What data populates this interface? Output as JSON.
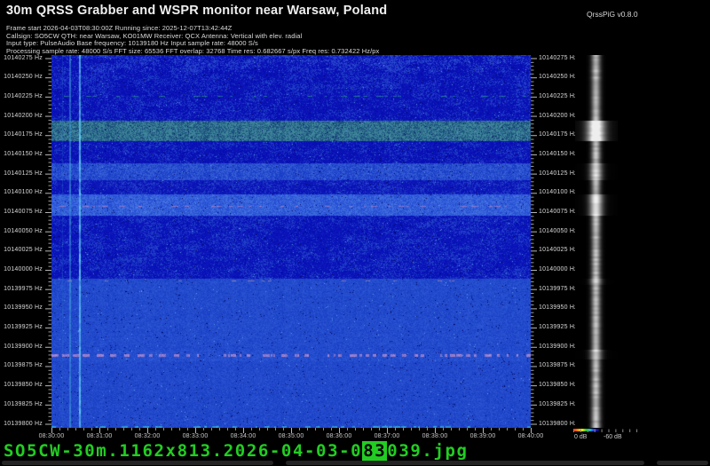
{
  "header": {
    "title": "30m QRSS Grabber and WSPR monitor near Warsaw, Poland",
    "version": "QrssPiG v0.8.0",
    "meta_lines": [
      "Frame start 2026-04-03T08:30:00Z Running since: 2025-12-07T13:42:44Z",
      "Callsign: SO5CW QTH: near Warsaw, KO01MW Receiver: QCX Antenna: Vertical with elev. radial",
      "Input type: PulseAudio Base frequency: 10139180 Hz Input sample rate: 48000 S/s",
      "Processing sample rate: 48000 S/s FFT size: 65536 FFT overlap: 32768 Time res: 0.682667 s/px Freq res: 0.732422 Hz/px"
    ]
  },
  "chart_data": {
    "type": "heatmap",
    "subtype": "qrss-spectrogram-waterfall",
    "x_axis": {
      "unit": "UTC time",
      "start": "08:30:00",
      "end": "08:40:00",
      "major_step_seconds": 60,
      "minor_step_seconds": 10,
      "labels": [
        "08:30:00",
        "08:31:00",
        "08:32:00",
        "08:33:00",
        "08:34:00",
        "08:35:00",
        "08:36:00",
        "08:37:00",
        "08:38:00",
        "08:39:00",
        "08:40:00"
      ]
    },
    "y_axis": {
      "unit": "Hz",
      "top_hz": 10140275,
      "bottom_hz": 10139800,
      "major_step_hz": 25,
      "minor_step_hz": 5,
      "labels": [
        "10140275 Hz",
        "10140250 Hz",
        "10140225 Hz",
        "10140200 Hz",
        "10140175 Hz",
        "10140150 Hz",
        "10140125 Hz",
        "10140100 Hz",
        "10140075 Hz",
        "10140050 Hz",
        "10140025 Hz",
        "10140000 Hz",
        "10139975 Hz",
        "10139950 Hz",
        "10139925 Hz",
        "10139900 Hz",
        "10139875 Hz",
        "10139850 Hz",
        "10139825 Hz",
        "10139800 Hz"
      ]
    },
    "db_axis": {
      "labels": [
        "0 dB",
        "-60 dB"
      ],
      "range_db": [
        0,
        -60
      ]
    },
    "palette": {
      "background": "#000000",
      "noise_floor_blue": "#0a12b6",
      "mid_blue": "#2448cc",
      "bright_blue": "#4472e0",
      "teal_band": "#458f9f",
      "static_crash_cyan": "#62d0f5",
      "wspr_pink": "#cb93cb",
      "text_white": "#e8e8e8"
    },
    "texture_zones": [
      {
        "name": "top-noise",
        "y0": 0.0,
        "y1": 0.045,
        "base": "#0a12b6",
        "alt": "#2c50d2",
        "mix": 0.42,
        "clumpy": true
      },
      {
        "name": "upper-mottle",
        "y0": 0.045,
        "y1": 0.175,
        "base": "#0a12b6",
        "alt": "#2448cc",
        "mix": 0.34,
        "clumpy": true
      },
      {
        "name": "teal-band",
        "y0": 0.175,
        "y1": 0.23,
        "base": "#1d527e",
        "alt": "#458f9f",
        "mix": 0.52,
        "clumpy": false
      },
      {
        "name": "dark-mottle",
        "y0": 0.23,
        "y1": 0.29,
        "base": "#0a12b6",
        "alt": "#2346ca",
        "mix": 0.3,
        "clumpy": true
      },
      {
        "name": "light-band-1",
        "y0": 0.29,
        "y1": 0.335,
        "base": "#1c40c8",
        "alt": "#3a63d8",
        "mix": 0.46,
        "clumpy": false
      },
      {
        "name": "mid-mottle",
        "y0": 0.335,
        "y1": 0.372,
        "base": "#0c16b8",
        "alt": "#2649cc",
        "mix": 0.36,
        "clumpy": true
      },
      {
        "name": "bright-band",
        "y0": 0.372,
        "y1": 0.43,
        "base": "#2750d4",
        "alt": "#4472e0",
        "mix": 0.5,
        "clumpy": false
      },
      {
        "name": "clumpy-dark",
        "y0": 0.43,
        "y1": 0.6,
        "base": "#0a14b8",
        "alt": "#2448cc",
        "mix": 0.38,
        "clumpy": true
      },
      {
        "name": "uniform-mid",
        "y0": 0.6,
        "y1": 0.79,
        "base": "#1d44c8",
        "alt": "#2a54d2",
        "mix": 0.5,
        "clumpy": false
      },
      {
        "name": "wspr-zone",
        "y0": 0.79,
        "y1": 0.82,
        "base": "#1e46ca",
        "alt": "#2c57d4",
        "mix": 0.52,
        "clumpy": false
      },
      {
        "name": "lower-uniform",
        "y0": 0.82,
        "y1": 1.0,
        "base": "#1c42c6",
        "alt": "#2951d0",
        "mix": 0.5,
        "clumpy": false
      }
    ],
    "signal_rows": [
      {
        "name": "upper-teal-dashes",
        "y": 0.11,
        "color": "#2a9a8a",
        "density": 0.3,
        "thickness": 1
      },
      {
        "name": "pink-line-upper",
        "y": 0.405,
        "color": "#b27fc4",
        "density": 0.3,
        "thickness": 1
      },
      {
        "name": "pink-dashed-middle",
        "y": 0.605,
        "color": "#a98fb8",
        "density": 0.22,
        "thickness": 1
      },
      {
        "name": "wspr-pink-band",
        "y": 0.803,
        "color": "#cb93cb",
        "density": 0.55,
        "thickness": 3
      },
      {
        "name": "bottom-cyan-dashes",
        "y": 0.996,
        "color": "#38b8e0",
        "density": 0.3,
        "thickness": 2
      }
    ],
    "vertical_lines": [
      {
        "name": "static-crash-1",
        "x": 0.037,
        "color": "#3f9fd8",
        "width": 2,
        "alpha": 0.75
      },
      {
        "name": "static-crash-2",
        "x": 0.058,
        "color": "#62d0f5",
        "width": 2,
        "alpha": 0.95
      },
      {
        "name": "static-faint",
        "x": 0.022,
        "color": "#2a70c8",
        "width": 1,
        "alpha": 0.4
      }
    ],
    "bar_boosts": [
      {
        "y0": 0.175,
        "y1": 0.23,
        "amp": 0.3
      },
      {
        "y0": 0.29,
        "y1": 0.335,
        "amp": 0.1
      },
      {
        "y0": 0.372,
        "y1": 0.43,
        "amp": 0.14
      },
      {
        "y0": 0.6,
        "y1": 0.615,
        "amp": 0.05
      },
      {
        "y0": 0.79,
        "y1": 0.815,
        "amp": 0.08
      }
    ]
  },
  "footer": {
    "filename_prefix": "SO5CW-30m.1162x813.2026-04-03-0",
    "filename_inverted": "83",
    "filename_suffix": "039.jpg",
    "text_color": "#22cd22"
  }
}
